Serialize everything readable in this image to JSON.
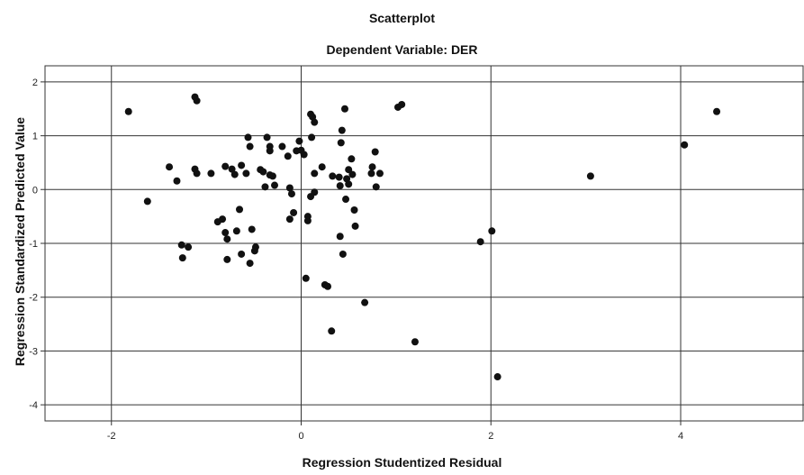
{
  "chart_data": {
    "type": "scatter",
    "title": "Scatterplot",
    "subtitle": "Dependent Variable: DER",
    "xlabel": "Regression Studentized Residual",
    "ylabel": "Regression Standardized Predicted Value",
    "xlim": [
      -2.7,
      5.3
    ],
    "ylim": [
      -4.3,
      2.3
    ],
    "xticks": [
      -2,
      0,
      2,
      4
    ],
    "yticks": [
      2,
      1,
      0,
      -1,
      -2,
      -3,
      -4
    ],
    "xtick_labels": [
      "-2",
      "0",
      "2",
      "4"
    ],
    "ytick_labels": [
      "2",
      "1",
      "0",
      "-1",
      "-2",
      "-3",
      "-4"
    ],
    "grid": true,
    "point_color": "#111111",
    "points": [
      {
        "x": -1.82,
        "y": 1.45
      },
      {
        "x": -1.62,
        "y": -0.22
      },
      {
        "x": -1.39,
        "y": 0.42
      },
      {
        "x": -1.31,
        "y": 0.16
      },
      {
        "x": -1.26,
        "y": -1.03
      },
      {
        "x": -1.25,
        "y": -1.27
      },
      {
        "x": -1.19,
        "y": -1.07
      },
      {
        "x": -1.12,
        "y": 1.72
      },
      {
        "x": -1.1,
        "y": 1.65
      },
      {
        "x": -1.12,
        "y": 0.38
      },
      {
        "x": -1.1,
        "y": 0.3
      },
      {
        "x": -0.95,
        "y": 0.3
      },
      {
        "x": -0.88,
        "y": -0.6
      },
      {
        "x": -0.83,
        "y": -0.55
      },
      {
        "x": -0.8,
        "y": 0.43
      },
      {
        "x": -0.8,
        "y": -0.8
      },
      {
        "x": -0.78,
        "y": -0.92
      },
      {
        "x": -0.78,
        "y": -1.3
      },
      {
        "x": -0.73,
        "y": 0.38
      },
      {
        "x": -0.7,
        "y": 0.28
      },
      {
        "x": -0.68,
        "y": -0.77
      },
      {
        "x": -0.65,
        "y": -0.37
      },
      {
        "x": -0.63,
        "y": 0.45
      },
      {
        "x": -0.63,
        "y": -1.2
      },
      {
        "x": -0.58,
        "y": 0.3
      },
      {
        "x": -0.56,
        "y": 0.97
      },
      {
        "x": -0.54,
        "y": 0.8
      },
      {
        "x": -0.54,
        "y": -1.37
      },
      {
        "x": -0.52,
        "y": -0.74
      },
      {
        "x": -0.49,
        "y": -1.14
      },
      {
        "x": -0.48,
        "y": -1.07
      },
      {
        "x": -0.43,
        "y": 0.37
      },
      {
        "x": -0.4,
        "y": 0.33
      },
      {
        "x": -0.38,
        "y": 0.05
      },
      {
        "x": -0.36,
        "y": 0.97
      },
      {
        "x": -0.33,
        "y": 0.8
      },
      {
        "x": -0.33,
        "y": 0.72
      },
      {
        "x": -0.33,
        "y": 0.27
      },
      {
        "x": -0.3,
        "y": 0.25
      },
      {
        "x": -0.28,
        "y": 0.08
      },
      {
        "x": -0.2,
        "y": 0.8
      },
      {
        "x": -0.14,
        "y": 0.62
      },
      {
        "x": -0.12,
        "y": 0.03
      },
      {
        "x": -0.1,
        "y": -0.08
      },
      {
        "x": -0.12,
        "y": -0.55
      },
      {
        "x": -0.08,
        "y": -0.43
      },
      {
        "x": -0.05,
        "y": 0.72
      },
      {
        "x": -0.02,
        "y": 0.9
      },
      {
        "x": 0.0,
        "y": 0.73
      },
      {
        "x": 0.03,
        "y": 0.65
      },
      {
        "x": 0.07,
        "y": -0.5
      },
      {
        "x": 0.07,
        "y": -0.58
      },
      {
        "x": 0.05,
        "y": -1.65
      },
      {
        "x": 0.1,
        "y": 1.4
      },
      {
        "x": 0.11,
        "y": 0.97
      },
      {
        "x": 0.12,
        "y": 1.35
      },
      {
        "x": 0.14,
        "y": 1.25
      },
      {
        "x": 0.14,
        "y": 0.3
      },
      {
        "x": 0.14,
        "y": -0.05
      },
      {
        "x": 0.1,
        "y": -0.13
      },
      {
        "x": 0.22,
        "y": 0.42
      },
      {
        "x": 0.25,
        "y": -1.77
      },
      {
        "x": 0.28,
        "y": -1.8
      },
      {
        "x": 0.32,
        "y": -2.63
      },
      {
        "x": 0.33,
        "y": 0.25
      },
      {
        "x": 0.4,
        "y": 0.23
      },
      {
        "x": 0.41,
        "y": 0.07
      },
      {
        "x": 0.41,
        "y": -0.87
      },
      {
        "x": 0.42,
        "y": 0.87
      },
      {
        "x": 0.43,
        "y": 1.1
      },
      {
        "x": 0.44,
        "y": -1.2
      },
      {
        "x": 0.46,
        "y": 1.5
      },
      {
        "x": 0.47,
        "y": -0.18
      },
      {
        "x": 0.48,
        "y": 0.2
      },
      {
        "x": 0.5,
        "y": 0.37
      },
      {
        "x": 0.5,
        "y": 0.1
      },
      {
        "x": 0.53,
        "y": 0.57
      },
      {
        "x": 0.54,
        "y": 0.28
      },
      {
        "x": 0.56,
        "y": -0.38
      },
      {
        "x": 0.57,
        "y": -0.68
      },
      {
        "x": 0.67,
        "y": -2.1
      },
      {
        "x": 0.74,
        "y": 0.3
      },
      {
        "x": 0.75,
        "y": 0.42
      },
      {
        "x": 0.78,
        "y": 0.7
      },
      {
        "x": 0.79,
        "y": 0.05
      },
      {
        "x": 0.83,
        "y": 0.3
      },
      {
        "x": 1.02,
        "y": 1.53
      },
      {
        "x": 1.06,
        "y": 1.58
      },
      {
        "x": 1.2,
        "y": -2.83
      },
      {
        "x": 1.89,
        "y": -0.97
      },
      {
        "x": 2.01,
        "y": -0.77
      },
      {
        "x": 2.07,
        "y": -3.48
      },
      {
        "x": 3.05,
        "y": 0.25
      },
      {
        "x": 4.04,
        "y": 0.83
      },
      {
        "x": 4.38,
        "y": 1.45
      }
    ]
  }
}
